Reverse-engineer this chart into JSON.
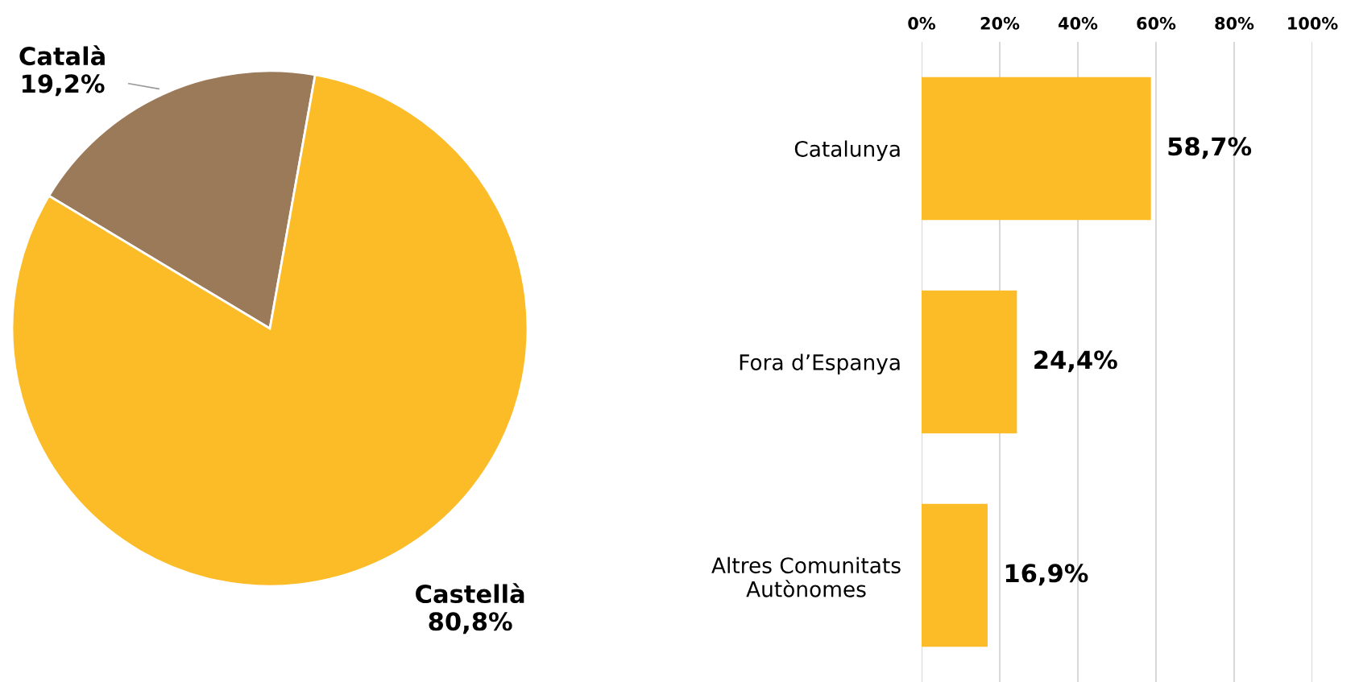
{
  "chart_data": [
    {
      "type": "pie",
      "categories": [
        "Català",
        "Castellà"
      ],
      "values": [
        19.2,
        80.8
      ],
      "colors": [
        "#9b7a5a",
        "#fbbc28"
      ],
      "value_labels": [
        "19,2%",
        "80,8%"
      ],
      "legend": false
    },
    {
      "type": "bar",
      "orientation": "horizontal",
      "categories": [
        "Catalunya",
        "Fora d’Espanya",
        "Altres Comunitats\nAutònomes"
      ],
      "values": [
        58.7,
        24.4,
        16.9
      ],
      "color": "#fbbc28",
      "value_labels": [
        "58,7%",
        "24,4%",
        "16,9%"
      ],
      "xlim": [
        0,
        100
      ],
      "xticks": [
        {
          "value": 0,
          "label": "0%"
        },
        {
          "value": 20,
          "label": "20%"
        },
        {
          "value": 40,
          "label": "40%"
        },
        {
          "value": 60,
          "label": "60%"
        },
        {
          "value": 80,
          "label": "80%"
        },
        {
          "value": 100,
          "label": "100%"
        }
      ],
      "grid": "x",
      "legend": false
    }
  ]
}
